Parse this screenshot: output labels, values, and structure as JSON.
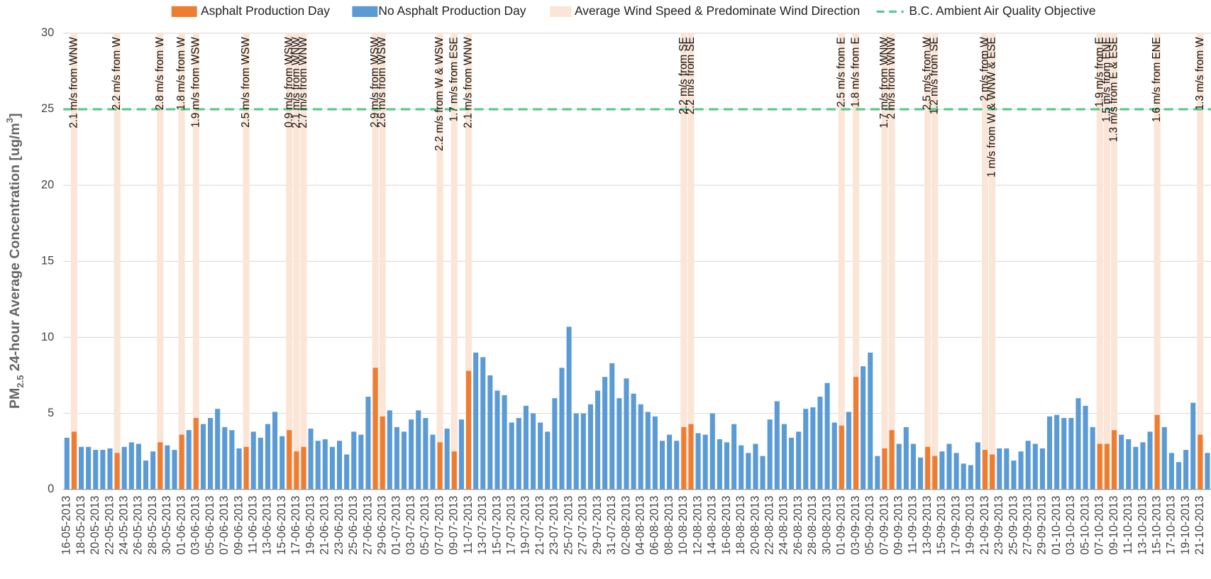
{
  "chart_data": {
    "type": "bar",
    "y_label_parts": [
      "PM",
      "2.5",
      " 24-hour Average Concentration [ug/m",
      "3",
      "]"
    ],
    "ylim": [
      0,
      30
    ],
    "yticks": [
      0,
      5,
      10,
      15,
      20,
      25,
      30
    ],
    "grid": true,
    "categories": [
      "16-05-2013",
      null,
      "18-05-2013",
      null,
      "20-05-2013",
      null,
      "22-05-2013",
      null,
      "24-05-2013",
      null,
      "26-05-2013",
      null,
      "28-05-2013",
      null,
      "30-05-2013",
      null,
      "01-06-2013",
      null,
      "03-06-2013",
      null,
      "05-06-2013",
      null,
      "07-06-2013",
      null,
      "09-06-2013",
      null,
      "11-06-2013",
      null,
      "13-06-2013",
      null,
      "15-06-2013",
      null,
      "17-06-2013",
      null,
      "19-06-2013",
      null,
      "21-06-2013",
      null,
      "23-06-2013",
      null,
      "25-06-2013",
      null,
      "27-06-2013",
      null,
      "29-06-2013",
      null,
      "01-07-2013",
      null,
      "03-07-2013",
      null,
      "05-07-2013",
      null,
      "07-07-2013",
      null,
      "09-07-2013",
      null,
      "11-07-2013",
      null,
      "13-07-2013",
      null,
      "15-07-2013",
      null,
      "17-07-2013",
      null,
      "19-07-2013",
      null,
      "21-07-2013",
      null,
      "23-07-2013",
      null,
      "25-07-2013",
      null,
      "27-07-2013",
      null,
      "29-07-2013",
      null,
      "31-07-2013",
      null,
      "02-08-2013",
      null,
      "04-08-2013",
      null,
      "06-08-2013",
      null,
      "08-08-2013",
      null,
      "10-08-2013",
      null,
      "12-08-2013",
      null,
      "14-08-2013",
      null,
      "16-08-2013",
      null,
      "18-08-2013",
      null,
      "20-08-2013",
      null,
      "22-08-2013",
      null,
      "24-08-2013",
      null,
      "26-08-2013",
      null,
      "28-08-2013",
      null,
      "30-08-2013",
      null,
      "01-09-2013",
      null,
      "03-09-2013",
      null,
      "05-09-2013",
      null,
      "07-09-2013",
      null,
      "09-09-2013",
      null,
      "11-09-2013",
      null,
      "13-09-2013",
      null,
      "15-09-2013",
      null,
      "17-09-2013",
      null,
      "19-09-2013",
      null,
      "21-09-2013",
      null,
      "23-09-2013",
      null,
      "25-09-2013",
      null,
      "27-09-2013",
      null,
      "29-09-2013",
      null,
      "01-10-2013",
      null,
      "03-10-2013",
      null,
      "05-10-2013",
      null,
      "07-10-2013",
      null,
      "09-10-2013",
      null,
      "11-10-2013",
      null,
      "13-10-2013",
      null,
      "15-10-2013",
      null,
      "17-10-2013",
      null,
      "19-10-2013",
      null,
      "21-10-2013",
      null
    ],
    "series": [
      {
        "name": "Asphalt Production Day",
        "color": "#ed7d31",
        "values": [
          null,
          3.8,
          null,
          null,
          null,
          null,
          null,
          2.4,
          null,
          null,
          null,
          null,
          null,
          3.1,
          null,
          null,
          3.6,
          null,
          4.7,
          null,
          null,
          null,
          null,
          null,
          null,
          2.8,
          null,
          null,
          null,
          null,
          null,
          3.9,
          2.5,
          2.8,
          null,
          null,
          null,
          null,
          null,
          null,
          null,
          null,
          null,
          8.0,
          4.8,
          null,
          null,
          null,
          null,
          null,
          null,
          null,
          3.1,
          null,
          2.5,
          null,
          7.8,
          null,
          null,
          null,
          null,
          null,
          null,
          null,
          null,
          null,
          null,
          null,
          null,
          null,
          null,
          null,
          null,
          null,
          null,
          null,
          null,
          null,
          null,
          null,
          null,
          null,
          null,
          null,
          null,
          null,
          4.1,
          4.3,
          null,
          null,
          null,
          null,
          null,
          null,
          null,
          null,
          null,
          null,
          null,
          null,
          null,
          null,
          null,
          null,
          null,
          null,
          null,
          null,
          4.2,
          null,
          7.4,
          null,
          null,
          null,
          2.7,
          3.9,
          null,
          null,
          null,
          null,
          2.8,
          2.2,
          null,
          null,
          null,
          null,
          null,
          null,
          2.6,
          2.3,
          null,
          null,
          null,
          null,
          null,
          null,
          null,
          null,
          null,
          null,
          null,
          null,
          null,
          null,
          3.0,
          3.0,
          3.9,
          null,
          null,
          null,
          null,
          null,
          4.9,
          null,
          null,
          null,
          null,
          null,
          3.6,
          null
        ]
      },
      {
        "name": "No Asphalt Production Day",
        "color": "#5b9bd5",
        "values": [
          3.4,
          null,
          2.8,
          2.8,
          2.6,
          2.6,
          2.7,
          null,
          2.8,
          3.1,
          3.0,
          1.9,
          2.5,
          null,
          2.9,
          2.6,
          null,
          3.9,
          null,
          4.3,
          4.7,
          5.3,
          4.1,
          3.9,
          2.7,
          null,
          3.8,
          3.4,
          4.3,
          5.1,
          3.5,
          null,
          null,
          null,
          4.0,
          3.2,
          3.3,
          2.8,
          3.2,
          2.3,
          3.8,
          3.6,
          6.1,
          null,
          null,
          5.2,
          4.1,
          3.8,
          4.6,
          5.2,
          4.7,
          3.6,
          null,
          4.0,
          null,
          4.6,
          null,
          9.0,
          8.7,
          7.5,
          6.5,
          6.2,
          4.4,
          4.7,
          5.5,
          5.0,
          4.4,
          3.8,
          6.0,
          8.0,
          10.7,
          5.0,
          5.0,
          5.6,
          6.5,
          7.4,
          8.3,
          6.0,
          7.3,
          6.3,
          5.6,
          5.1,
          4.8,
          3.2,
          3.6,
          3.2,
          null,
          null,
          3.7,
          3.6,
          5.0,
          3.3,
          3.1,
          4.3,
          2.9,
          2.4,
          3.0,
          2.2,
          4.6,
          5.8,
          4.3,
          3.4,
          3.8,
          5.3,
          5.4,
          6.1,
          7.0,
          4.4,
          null,
          5.1,
          null,
          8.1,
          9.0,
          2.2,
          null,
          null,
          3.0,
          4.1,
          3.0,
          2.1,
          null,
          null,
          2.5,
          3.0,
          2.4,
          1.7,
          1.6,
          3.1,
          null,
          null,
          2.7,
          2.7,
          1.9,
          2.5,
          3.2,
          3.0,
          2.7,
          4.8,
          4.9,
          4.7,
          4.7,
          6.0,
          5.5,
          4.1,
          null,
          null,
          null,
          3.6,
          3.3,
          2.8,
          3.1,
          3.8,
          null,
          4.1,
          2.4,
          1.8,
          2.6,
          5.7,
          null,
          2.4
        ]
      }
    ],
    "wind": {
      "name": "Average Wind Speed & Predominate Wind Direction",
      "color": "#fbe5d6",
      "labels": [
        null,
        "2.1 m/s from WNW",
        null,
        null,
        null,
        null,
        null,
        "2.2 m/s from W",
        null,
        null,
        null,
        null,
        null,
        "2.8 m/s from W",
        null,
        null,
        "1.8 m/s from W",
        null,
        "1.9 m/s from WSW",
        null,
        null,
        null,
        null,
        null,
        null,
        "2.5 m/s from WSW",
        null,
        null,
        null,
        null,
        null,
        "0.9 m/s from WSW",
        "2.1 m/s from WNW",
        "2.7 m/s from WNW",
        null,
        null,
        null,
        null,
        null,
        null,
        null,
        null,
        null,
        "2.9 m/s from WSW",
        "2.6 m/s from WSW",
        null,
        null,
        null,
        null,
        null,
        null,
        null,
        "2.2 m/s from W & WSW",
        null,
        "1.7 m/s from ESE",
        null,
        "2.1 m/s from WNW",
        null,
        null,
        null,
        null,
        null,
        null,
        null,
        null,
        null,
        null,
        null,
        null,
        null,
        null,
        null,
        null,
        null,
        null,
        null,
        null,
        null,
        null,
        null,
        null,
        null,
        null,
        null,
        null,
        null,
        "2.2 m/s from SE",
        "2.2 m/s from SE",
        null,
        null,
        null,
        null,
        null,
        null,
        null,
        null,
        null,
        null,
        null,
        null,
        null,
        null,
        null,
        null,
        null,
        null,
        null,
        null,
        "2.5 m/s from E",
        null,
        "1.8 m/s from E",
        null,
        null,
        null,
        "1.7 m/s from WNW",
        "2 m/s from WNW",
        null,
        null,
        null,
        null,
        "2.5 m/s from W",
        "1.2 m/s from SE",
        null,
        null,
        null,
        null,
        null,
        null,
        "2 m/s from W",
        "1 m/s from W & WNW & ESE",
        null,
        null,
        null,
        null,
        null,
        null,
        null,
        null,
        null,
        null,
        null,
        null,
        null,
        null,
        "1.9 m/s from E",
        "1.5 m/s from ENE",
        "1.3 m/s from E & ESE",
        null,
        null,
        null,
        null,
        null,
        "1.6 m/s from ENE",
        null,
        null,
        null,
        null,
        null,
        "1.3 m/s from W",
        null
      ]
    },
    "threshold": {
      "name": "B.C. Ambient Air Quality Objective",
      "value": 25,
      "color": "#5ec98e"
    }
  }
}
